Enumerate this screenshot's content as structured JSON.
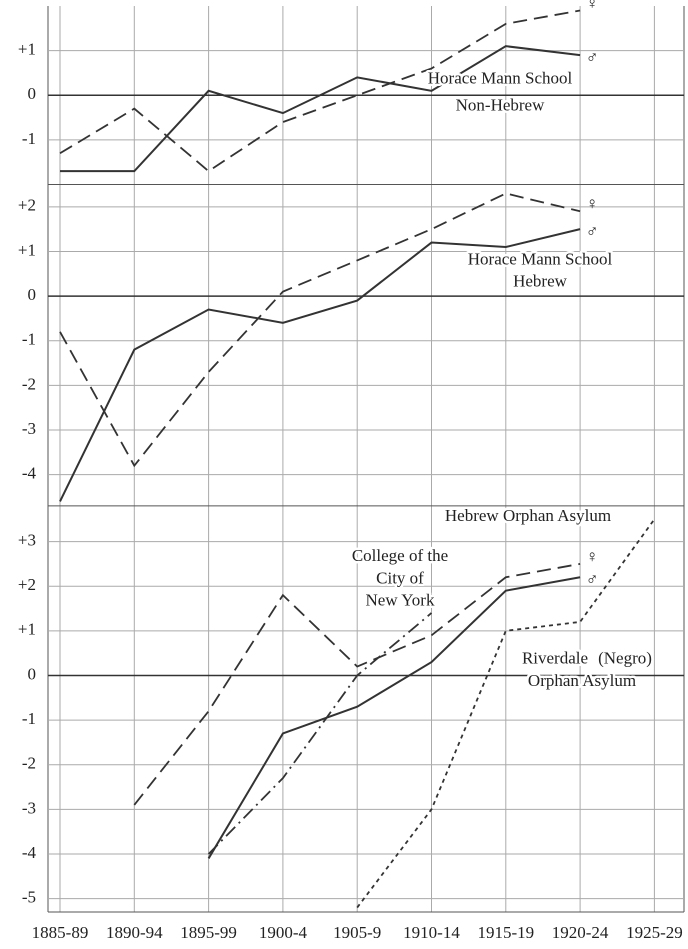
{
  "chart_data": {
    "type": "line",
    "categories": [
      "1885-89",
      "1890-94",
      "1895-99",
      "1900-4",
      "1905-9",
      "1910-14",
      "1915-19",
      "1920-24",
      "1925-29"
    ],
    "grid": true,
    "panels": [
      {
        "ylim": [
          -2,
          2
        ],
        "yticks": [
          {
            "value": 1,
            "label": "+1"
          },
          0,
          -1
        ],
        "annotations": [
          "Horace Mann School",
          "Non-Hebrew"
        ],
        "series": [
          {
            "name": "♀",
            "color": "#333333",
            "dash": "dashed",
            "values": [
              -1.3,
              -0.3,
              -1.7,
              -0.6,
              0,
              0.6,
              1.6,
              1.9,
              null
            ]
          },
          {
            "name": "♂",
            "color": "#333333",
            "dash": "solid",
            "values": [
              -1.7,
              -1.7,
              0.1,
              -0.4,
              0.4,
              0.1,
              1.1,
              0.9,
              null
            ]
          }
        ]
      },
      {
        "ylim": [
          -4.7,
          2.5
        ],
        "yticks": [
          {
            "value": 2,
            "label": "+2"
          },
          {
            "value": 1,
            "label": "+1"
          },
          0,
          -1,
          -2,
          -3,
          -4
        ],
        "annotations": [
          "Horace Mann School",
          "Hebrew"
        ],
        "series": [
          {
            "name": "♀",
            "color": "#333333",
            "dash": "dashed",
            "values": [
              -0.8,
              -3.8,
              -1.7,
              0.1,
              0.8,
              1.5,
              2.3,
              1.9,
              null
            ]
          },
          {
            "name": "♂",
            "color": "#333333",
            "dash": "solid",
            "values": [
              -4.6,
              -1.2,
              -0.3,
              -0.6,
              -0.1,
              1.2,
              1.1,
              1.5,
              null
            ]
          }
        ]
      },
      {
        "ylim": [
          -5.3,
          3.8
        ],
        "yticks": [
          {
            "value": 3,
            "label": "+3"
          },
          {
            "value": 2,
            "label": "+2"
          },
          {
            "value": 1,
            "label": "+1"
          },
          0,
          -1,
          -2,
          -3,
          -4,
          -5
        ],
        "annotations": [
          "Hebrew Orphan Asylum",
          "College of the",
          "City of",
          "New York",
          "Riverdale",
          "(Negro)",
          "Orphan Asylum"
        ],
        "series": [
          {
            "name": "♀",
            "color": "#333333",
            "dash": "dashed",
            "values": [
              null,
              -2.9,
              -0.8,
              1.8,
              0.2,
              0.9,
              2.2,
              2.5,
              null
            ]
          },
          {
            "name": "♂",
            "color": "#333333",
            "dash": "solid",
            "values": [
              null,
              null,
              -4.1,
              -1.3,
              -0.7,
              0.3,
              1.9,
              2.2,
              null
            ]
          },
          {
            "color": "#333333",
            "dash": "dashdot",
            "values": [
              null,
              null,
              -4.0,
              -2.3,
              0,
              1.4,
              null,
              null,
              null
            ]
          },
          {
            "color": "#333333",
            "dash": "dotted",
            "values": [
              null,
              null,
              null,
              null,
              -5.2,
              -3.0,
              1.0,
              1.2,
              3.5
            ]
          }
        ]
      }
    ]
  }
}
